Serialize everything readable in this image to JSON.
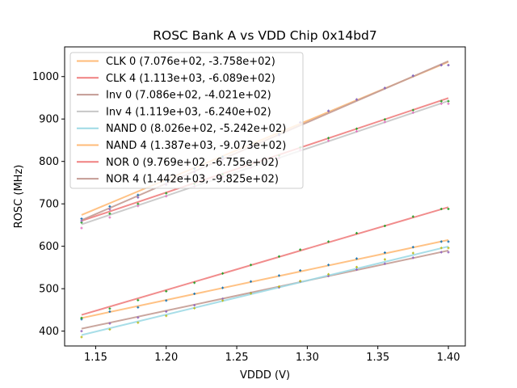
{
  "chart_data": {
    "type": "line",
    "title": "ROSC Bank A vs VDD Chip 0x14bd7",
    "xlabel": "VDDD (V)",
    "ylabel": "ROSC (MHz)",
    "xlim": [
      1.128,
      1.412
    ],
    "ylim": [
      365,
      1070
    ],
    "xticks": [
      1.15,
      1.2,
      1.25,
      1.3,
      1.35,
      1.4
    ],
    "xtick_labels": [
      "1.15",
      "1.20",
      "1.25",
      "1.30",
      "1.35",
      "1.40"
    ],
    "yticks": [
      400,
      500,
      600,
      700,
      800,
      900,
      1000
    ],
    "ytick_labels": [
      "400",
      "500",
      "600",
      "700",
      "800",
      "900",
      "1000"
    ],
    "grid": false,
    "legend_position": "top-left",
    "x": [
      1.14,
      1.16,
      1.18,
      1.2,
      1.22,
      1.24,
      1.26,
      1.28,
      1.295,
      1.315,
      1.335,
      1.355,
      1.375,
      1.395,
      1.4
    ],
    "series": [
      {
        "name": "CLK 0",
        "label": "CLK 0 (7.076e+02, -3.758e+02)",
        "slope": 707.6,
        "intercept": -375.8,
        "color": "#ffbb78",
        "marker_color": "#1f77b4",
        "values": [
          428,
          446,
          456,
          472,
          488,
          502,
          517,
          531,
          543,
          556,
          571,
          585,
          598,
          611,
          611
        ]
      },
      {
        "name": "CLK 4",
        "label": "CLK 4 (1.113e+03, -6.089e+02)",
        "slope": 1113.0,
        "intercept": -608.9,
        "color": "#f08080",
        "marker_color": "#2ca02c",
        "values": [
          656,
          677,
          700,
          725,
          747,
          770,
          792,
          814,
          833,
          855,
          877,
          899,
          921,
          942,
          942
        ]
      },
      {
        "name": "Inv 0",
        "label": "Inv 0 (7.086e+02, -4.021e+02)",
        "slope": 708.6,
        "intercept": -402.1,
        "color": "#c49c94",
        "marker_color": "#9467bd",
        "values": [
          400,
          418,
          432,
          446,
          461,
          476,
          490,
          503,
          517,
          530,
          545,
          559,
          573,
          586,
          586
        ]
      },
      {
        "name": "Inv 4",
        "label": "Inv 4 (1.119e+03, -6.240e+02)",
        "slope": 1119.0,
        "intercept": -624.0,
        "color": "#c7c7c7",
        "marker_color": "#e377c2",
        "values": [
          643,
          668,
          695,
          718,
          741,
          764,
          786,
          808,
          827,
          849,
          871,
          893,
          915,
          936,
          936
        ]
      },
      {
        "name": "NAND 0",
        "label": "NAND 0 (8.026e+02, -5.242e+02)",
        "slope": 802.6,
        "intercept": -524.2,
        "color": "#9edae5",
        "marker_color": "#bcbd22",
        "values": [
          386,
          404,
          420,
          436,
          454,
          472,
          489,
          505,
          518,
          534,
          551,
          569,
          584,
          596,
          596
        ]
      },
      {
        "name": "NAND 4",
        "label": "NAND 4 (1.387e+03, -9.073e+02)",
        "slope": 1387.0,
        "intercept": -907.3,
        "color": "#ffbb78",
        "marker_color": "#1f77b4",
        "values": [
          665,
          694,
          721,
          754,
          783,
          811,
          840,
          864,
          892,
          919,
          946,
          973,
          1002,
          1027,
          1027
        ]
      },
      {
        "name": "NOR 0",
        "label": "NOR 0 (9.769e+02, -6.755e+02)",
        "slope": 976.9,
        "intercept": -675.5,
        "color": "#f08080",
        "marker_color": "#2ca02c",
        "values": [
          431,
          453,
          473,
          494,
          514,
          536,
          556,
          576,
          592,
          611,
          631,
          648,
          670,
          688,
          688
        ]
      },
      {
        "name": "NOR 4",
        "label": "NOR 4 (1.442e+03, -9.825e+02)",
        "slope": 1442.0,
        "intercept": -982.5,
        "color": "#c49c94",
        "marker_color": "#9467bd",
        "values": [
          660,
          687,
          715,
          745,
          775,
          805,
          835,
          862,
          892,
          919,
          946,
          973,
          1002,
          1027,
          1027
        ]
      }
    ]
  }
}
